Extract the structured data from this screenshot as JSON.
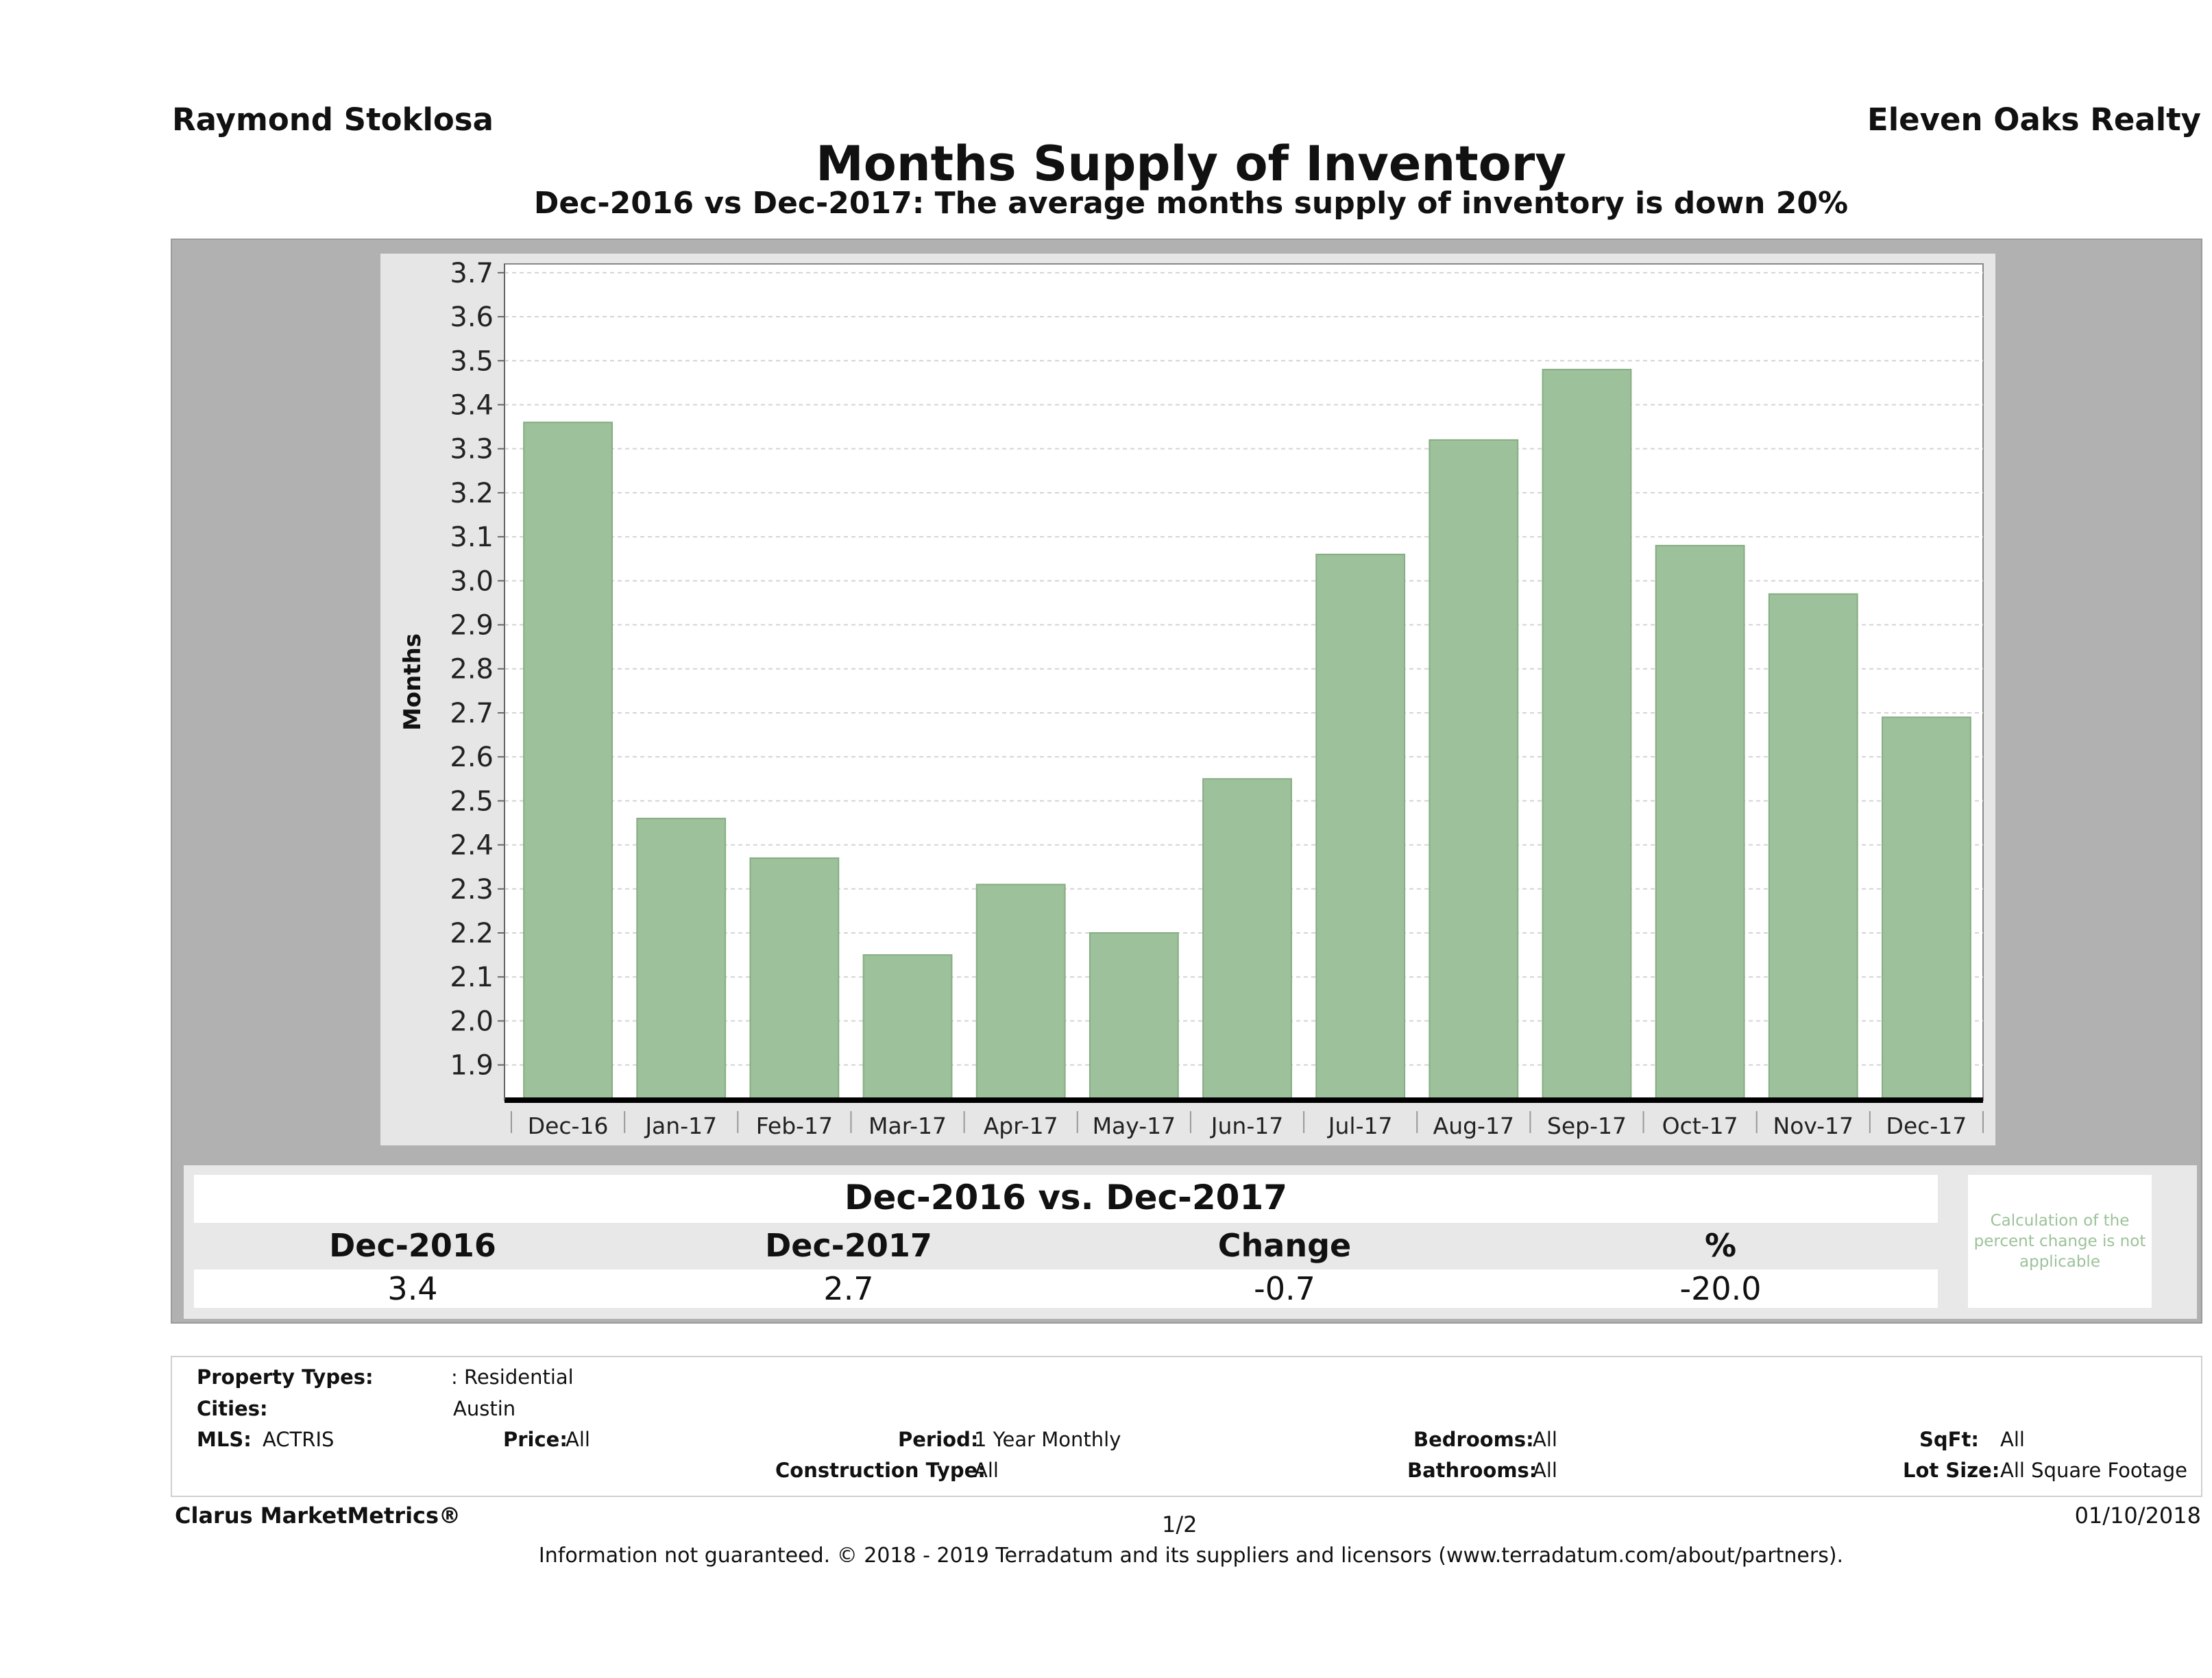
{
  "header": {
    "agent_name": "Raymond Stoklosa",
    "brokerage": "Eleven Oaks Realty",
    "title": "Months Supply of Inventory",
    "subtitle": "Dec-2016 vs Dec-2017: The average months supply of inventory is down 20%"
  },
  "chart_data": {
    "type": "bar",
    "title": "Months Supply of Inventory",
    "ylabel": "Months",
    "xlabel": "",
    "categories": [
      "Dec-16",
      "Jan-17",
      "Feb-17",
      "Mar-17",
      "Apr-17",
      "May-17",
      "Jun-17",
      "Jul-17",
      "Aug-17",
      "Sep-17",
      "Oct-17",
      "Nov-17",
      "Dec-17"
    ],
    "values": [
      3.36,
      2.46,
      2.37,
      2.15,
      2.31,
      2.2,
      2.55,
      3.06,
      3.32,
      3.48,
      3.08,
      2.97,
      2.69
    ],
    "yticks": [
      "1.9",
      "2.0",
      "2.1",
      "2.2",
      "2.3",
      "2.4",
      "2.5",
      "2.6",
      "2.7",
      "2.8",
      "2.9",
      "3.0",
      "3.1",
      "3.2",
      "3.3",
      "3.4",
      "3.5",
      "3.6",
      "3.7"
    ],
    "ylim": [
      1.82,
      3.72
    ],
    "grid": true,
    "bar_color": "#9dc19a"
  },
  "summary": {
    "title": "Dec-2016 vs. Dec-2017",
    "headers": [
      "Dec-2016",
      "Dec-2017",
      "Change",
      "%"
    ],
    "values": [
      "3.4",
      "2.7",
      "-0.7",
      "-20.0"
    ],
    "note": "Calculation of the percent change is not applicable"
  },
  "filters": {
    "property_types_label": "Property Types:",
    "property_types_value": ": Residential",
    "cities_label": "Cities:",
    "cities_value": "Austin",
    "mls_label": "MLS:",
    "mls_value": "ACTRIS",
    "price_label": "Price:",
    "price_value": "All",
    "period_label": "Period:",
    "period_value": "1 Year Monthly",
    "construction_label": "Construction Type:",
    "construction_value": "All",
    "bedrooms_label": "Bedrooms:",
    "bedrooms_value": "All",
    "bathrooms_label": "Bathrooms:",
    "bathrooms_value": "All",
    "sqft_label": "SqFt:",
    "sqft_value": "All",
    "lot_label": "Lot Size:",
    "lot_value": "All Square Footage"
  },
  "footer": {
    "brand": "Clarus MarketMetrics®",
    "page": "1/2",
    "date": "01/10/2018",
    "disclaimer": "Information not guaranteed. © 2018 - 2019 Terradatum and its suppliers and licensors (www.terradatum.com/about/partners)."
  }
}
